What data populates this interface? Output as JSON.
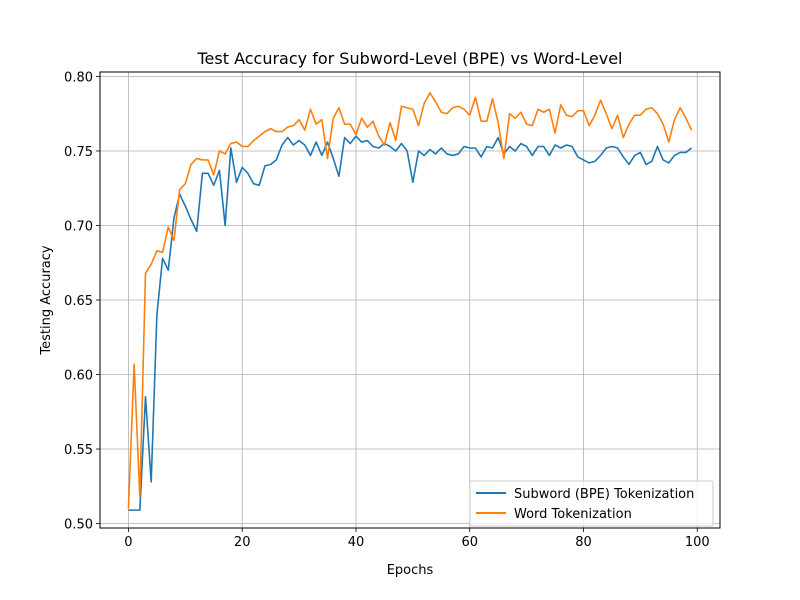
{
  "chart_data": {
    "type": "line",
    "title": "Test Accuracy for Subword-Level (BPE) vs Word-Level",
    "xlabel": "Epochs",
    "ylabel": "Testing Accuracy",
    "xlim": [
      -5,
      104
    ],
    "ylim": [
      0.497,
      0.803
    ],
    "xticks": [
      0,
      20,
      40,
      60,
      80,
      100
    ],
    "yticks": [
      0.5,
      0.55,
      0.6,
      0.65,
      0.7,
      0.75,
      0.8
    ],
    "xtick_labels": [
      "0",
      "20",
      "40",
      "60",
      "80",
      "100"
    ],
    "ytick_labels": [
      "0.50",
      "0.55",
      "0.60",
      "0.65",
      "0.70",
      "0.75",
      "0.80"
    ],
    "grid": true,
    "legend_position": "lower-right",
    "x": [
      0,
      1,
      2,
      3,
      4,
      5,
      6,
      7,
      8,
      9,
      10,
      11,
      12,
      13,
      14,
      15,
      16,
      17,
      18,
      19,
      20,
      21,
      22,
      23,
      24,
      25,
      26,
      27,
      28,
      29,
      30,
      31,
      32,
      33,
      34,
      35,
      36,
      37,
      38,
      39,
      40,
      41,
      42,
      43,
      44,
      45,
      46,
      47,
      48,
      49,
      50,
      51,
      52,
      53,
      54,
      55,
      56,
      57,
      58,
      59,
      60,
      61,
      62,
      63,
      64,
      65,
      66,
      67,
      68,
      69,
      70,
      71,
      72,
      73,
      74,
      75,
      76,
      77,
      78,
      79,
      80,
      81,
      82,
      83,
      84,
      85,
      86,
      87,
      88,
      89,
      90,
      91,
      92,
      93,
      94,
      95,
      96,
      97,
      98,
      99
    ],
    "series": [
      {
        "name": "Subword (BPE) Tokenization",
        "color": "#1f77b4",
        "values": [
          0.509,
          0.509,
          0.509,
          0.585,
          0.528,
          0.64,
          0.678,
          0.67,
          0.705,
          0.721,
          0.713,
          0.704,
          0.696,
          0.735,
          0.735,
          0.727,
          0.737,
          0.7,
          0.752,
          0.729,
          0.739,
          0.735,
          0.728,
          0.727,
          0.74,
          0.741,
          0.744,
          0.754,
          0.759,
          0.754,
          0.757,
          0.754,
          0.747,
          0.756,
          0.747,
          0.756,
          0.745,
          0.733,
          0.759,
          0.755,
          0.76,
          0.756,
          0.757,
          0.753,
          0.752,
          0.755,
          0.753,
          0.75,
          0.755,
          0.75,
          0.729,
          0.75,
          0.747,
          0.751,
          0.748,
          0.752,
          0.748,
          0.747,
          0.748,
          0.753,
          0.752,
          0.752,
          0.746,
          0.753,
          0.752,
          0.759,
          0.748,
          0.753,
          0.75,
          0.755,
          0.753,
          0.747,
          0.753,
          0.753,
          0.747,
          0.754,
          0.752,
          0.754,
          0.753,
          0.746,
          0.744,
          0.742,
          0.743,
          0.747,
          0.752,
          0.753,
          0.752,
          0.746,
          0.741,
          0.747,
          0.749,
          0.741,
          0.743,
          0.753,
          0.744,
          0.742,
          0.747,
          0.749,
          0.749,
          0.752
        ]
      },
      {
        "name": "Word Tokenization",
        "color": "#ff7f0e",
        "values": [
          0.51,
          0.607,
          0.518,
          0.668,
          0.674,
          0.683,
          0.682,
          0.699,
          0.69,
          0.724,
          0.728,
          0.741,
          0.745,
          0.744,
          0.744,
          0.734,
          0.75,
          0.748,
          0.755,
          0.756,
          0.753,
          0.753,
          0.757,
          0.76,
          0.763,
          0.765,
          0.763,
          0.763,
          0.766,
          0.767,
          0.771,
          0.764,
          0.778,
          0.768,
          0.771,
          0.745,
          0.772,
          0.779,
          0.768,
          0.768,
          0.761,
          0.772,
          0.766,
          0.77,
          0.76,
          0.754,
          0.769,
          0.757,
          0.78,
          0.779,
          0.778,
          0.767,
          0.782,
          0.789,
          0.783,
          0.776,
          0.775,
          0.779,
          0.78,
          0.778,
          0.774,
          0.786,
          0.77,
          0.77,
          0.785,
          0.769,
          0.745,
          0.775,
          0.772,
          0.776,
          0.768,
          0.767,
          0.778,
          0.776,
          0.778,
          0.762,
          0.781,
          0.774,
          0.773,
          0.777,
          0.777,
          0.767,
          0.774,
          0.784,
          0.775,
          0.765,
          0.774,
          0.759,
          0.768,
          0.774,
          0.774,
          0.778,
          0.779,
          0.775,
          0.768,
          0.756,
          0.771,
          0.779,
          0.772,
          0.764
        ]
      }
    ]
  }
}
